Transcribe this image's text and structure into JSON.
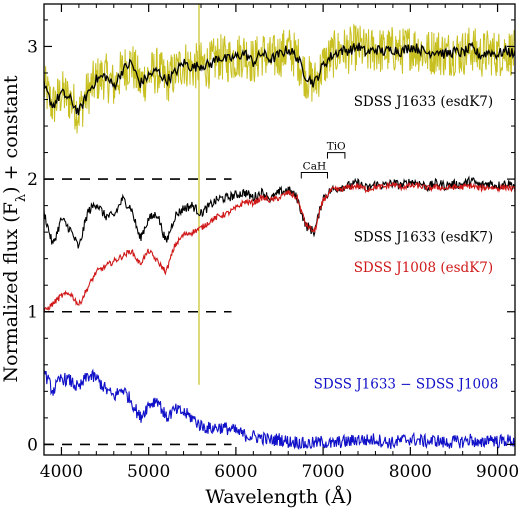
{
  "chart_data": {
    "type": "line",
    "xlabel": "Wavelength (Å)",
    "ylabel": "Normalized flux (F",
    "ylabel_sub": "λ",
    "ylabel_suffix": ") + constant",
    "xlim": [
      3800,
      9200
    ],
    "ylim": [
      -0.08,
      3.32
    ],
    "x_ticks": [
      4000,
      5000,
      6000,
      7000,
      8000,
      9000
    ],
    "y_ticks": [
      0,
      1,
      2,
      3
    ],
    "x_tick_labels": [
      "4000",
      "5000",
      "6000",
      "7000",
      "8000",
      "9000"
    ],
    "y_tick_labels": [
      "0",
      "1",
      "2",
      "3"
    ],
    "grid": false,
    "reference_lines": [
      {
        "y": 2,
        "x_range": [
          3800,
          5950
        ],
        "style": "dashed"
      },
      {
        "y": 1,
        "x_range": [
          3800,
          5950
        ],
        "style": "dashed"
      },
      {
        "y": 0,
        "x_range": [
          3800,
          5950
        ],
        "style": "dashed"
      }
    ],
    "series": [
      {
        "label_text": "SDSS J1633 (esdK7)",
        "color": "#000000",
        "noise_color": "#c8c020",
        "noise": 0.18,
        "x": [
          3800,
          3900,
          4000,
          4100,
          4200,
          4300,
          4400,
          4500,
          4600,
          4700,
          4800,
          4900,
          5000,
          5100,
          5200,
          5300,
          5400,
          5500,
          5600,
          5700,
          5800,
          5900,
          6000,
          6100,
          6200,
          6300,
          6400,
          6500,
          6600,
          6700,
          6800,
          6900,
          7000,
          7100,
          7200,
          7300,
          7400,
          7500,
          7600,
          7700,
          7800,
          7900,
          8000,
          8100,
          8200,
          8300,
          8400,
          8500,
          8600,
          8700,
          8800,
          8900,
          9000,
          9100,
          9200
        ],
        "y": [
          2.7,
          2.55,
          2.65,
          2.6,
          2.5,
          2.65,
          2.75,
          2.78,
          2.7,
          2.82,
          2.88,
          2.72,
          2.78,
          2.82,
          2.74,
          2.8,
          2.88,
          2.84,
          2.86,
          2.86,
          2.92,
          2.9,
          2.92,
          2.95,
          2.88,
          2.95,
          2.9,
          2.94,
          2.98,
          2.92,
          2.78,
          2.72,
          2.86,
          2.93,
          2.97,
          2.97,
          3.0,
          2.95,
          2.98,
          2.96,
          2.98,
          2.96,
          3.0,
          2.98,
          2.95,
          2.97,
          2.94,
          2.96,
          2.95,
          2.99,
          2.93,
          2.96,
          2.94,
          2.97,
          2.94
        ]
      },
      {
        "label_text": "SDSS J1633 (esdK7)",
        "color": "#000000",
        "noise": 0.035,
        "x": [
          3800,
          3900,
          4000,
          4100,
          4200,
          4300,
          4400,
          4500,
          4600,
          4700,
          4800,
          4900,
          5000,
          5100,
          5200,
          5300,
          5400,
          5500,
          5600,
          5700,
          5800,
          5900,
          6000,
          6100,
          6200,
          6300,
          6400,
          6500,
          6600,
          6700,
          6800,
          6900,
          7000,
          7100,
          7200,
          7300,
          7400,
          7500,
          7600,
          7700,
          7800,
          7900,
          8000,
          8100,
          8200,
          8300,
          8400,
          8500,
          8600,
          8700,
          8800,
          8900,
          9000,
          9100,
          9200
        ],
        "y": [
          1.75,
          1.5,
          1.7,
          1.62,
          1.48,
          1.75,
          1.82,
          1.72,
          1.72,
          1.85,
          1.78,
          1.55,
          1.7,
          1.74,
          1.52,
          1.72,
          1.78,
          1.8,
          1.74,
          1.8,
          1.85,
          1.86,
          1.88,
          1.9,
          1.86,
          1.9,
          1.85,
          1.9,
          1.92,
          1.86,
          1.65,
          1.6,
          1.86,
          1.92,
          1.94,
          1.95,
          1.97,
          1.93,
          1.96,
          1.95,
          1.97,
          1.95,
          1.98,
          1.97,
          1.94,
          1.97,
          1.95,
          1.96,
          1.96,
          1.99,
          1.95,
          1.97,
          1.95,
          1.97,
          1.95
        ]
      },
      {
        "label_text": "SDSS J1008 (esdK7)",
        "color": "#d01818",
        "noise": 0.022,
        "x": [
          3800,
          3900,
          4000,
          4100,
          4200,
          4300,
          4400,
          4500,
          4600,
          4700,
          4800,
          4900,
          5000,
          5100,
          5200,
          5300,
          5400,
          5500,
          5600,
          5700,
          5800,
          5900,
          6000,
          6100,
          6200,
          6300,
          6400,
          6500,
          6600,
          6700,
          6800,
          6900,
          7000,
          7100,
          7200,
          7300,
          7400,
          7500,
          7600,
          7700,
          7800,
          7900,
          8000,
          8100,
          8200,
          8300,
          8400,
          8500,
          8600,
          8700,
          8800,
          8900,
          9000,
          9100,
          9200
        ],
        "y": [
          1.0,
          1.06,
          1.12,
          1.14,
          1.05,
          1.18,
          1.3,
          1.34,
          1.38,
          1.42,
          1.46,
          1.36,
          1.46,
          1.38,
          1.3,
          1.5,
          1.58,
          1.6,
          1.63,
          1.68,
          1.72,
          1.74,
          1.78,
          1.83,
          1.82,
          1.86,
          1.84,
          1.86,
          1.9,
          1.86,
          1.66,
          1.6,
          1.84,
          1.92,
          1.92,
          1.94,
          1.95,
          1.92,
          1.94,
          1.94,
          1.96,
          1.94,
          1.95,
          1.95,
          1.93,
          1.94,
          1.93,
          1.94,
          1.94,
          1.95,
          1.93,
          1.94,
          1.93,
          1.94,
          1.92
        ]
      },
      {
        "label_text": "SDSS J1633 − SDSS J1008",
        "color": "#1010c8",
        "noise": 0.05,
        "x": [
          3800,
          3900,
          4000,
          4100,
          4200,
          4300,
          4400,
          4500,
          4600,
          4700,
          4800,
          4900,
          5000,
          5100,
          5200,
          5300,
          5400,
          5500,
          5600,
          5700,
          5800,
          5900,
          6000,
          6100,
          6200,
          6300,
          6400,
          6500,
          6600,
          6700,
          6800,
          6900,
          7000,
          7100,
          7200,
          7300,
          7400,
          7500,
          7600,
          7700,
          7800,
          7900,
          8000,
          8100,
          8200,
          8300,
          8400,
          8500,
          8600,
          8700,
          8800,
          8900,
          9000,
          9100,
          9200
        ],
        "y": [
          0.55,
          0.4,
          0.5,
          0.48,
          0.42,
          0.52,
          0.5,
          0.42,
          0.36,
          0.42,
          0.33,
          0.2,
          0.3,
          0.34,
          0.2,
          0.26,
          0.24,
          0.2,
          0.14,
          0.12,
          0.13,
          0.12,
          0.1,
          0.07,
          0.06,
          0.05,
          0.03,
          0.04,
          0.02,
          0.02,
          0.0,
          0.01,
          0.02,
          0.0,
          0.02,
          0.02,
          0.04,
          0.03,
          0.04,
          0.02,
          0.01,
          0.03,
          0.04,
          0.03,
          0.02,
          0.03,
          0.01,
          0.02,
          0.02,
          0.04,
          -0.01,
          0.05,
          0.02,
          0.03,
          0.02
        ]
      }
    ],
    "spike": {
      "x": 5577,
      "y_top": 3.32,
      "y_bottom": 0.45,
      "color": "#c8c020"
    },
    "feature_labels": [
      {
        "text": "CaH",
        "x_start": 6750,
        "x_end": 7050,
        "y": 2.05
      },
      {
        "text": "TiO",
        "x_start": 7050,
        "x_end": 7250,
        "y": 2.2
      }
    ],
    "annotations": [
      {
        "series_index": 0,
        "text": "SDSS J1633 (esdK7)",
        "x": 8150,
        "y": 2.55,
        "color": "#000000"
      },
      {
        "series_index": 1,
        "text": "SDSS J1633 (esdK7)",
        "x": 8150,
        "y": 1.53,
        "color": "#000000"
      },
      {
        "series_index": 2,
        "text": "SDSS J1008 (esdK7)",
        "x": 8150,
        "y": 1.3,
        "color": "#d01818"
      },
      {
        "series_index": 3,
        "text": "SDSS J1633 − SDSS J1008",
        "x": 7950,
        "y": 0.42,
        "color": "#1010c8"
      }
    ]
  }
}
